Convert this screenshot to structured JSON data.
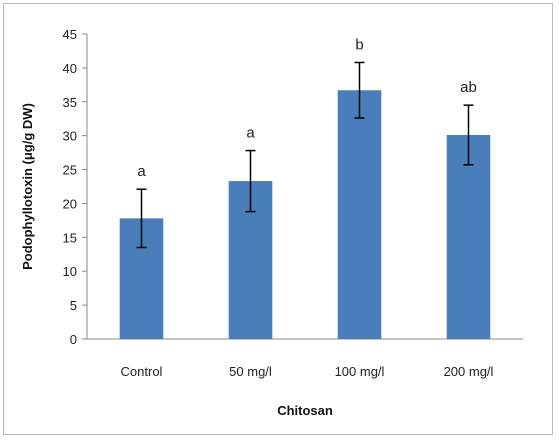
{
  "chart_data": {
    "type": "bar",
    "categories": [
      "Control",
      "50 mg/l",
      "100 mg/l",
      "200 mg/l"
    ],
    "values": [
      17.8,
      23.3,
      36.7,
      30.1
    ],
    "errors": [
      4.3,
      4.5,
      4.1,
      4.4
    ],
    "significance_letters": [
      "a",
      "a",
      "b",
      "ab"
    ],
    "xlabel": "Chitosan",
    "ylabel": "Podophyllotoxin (μg/g DW)",
    "ylim": [
      0,
      45
    ],
    "yticks": [
      0,
      5,
      10,
      15,
      20,
      25,
      30,
      35,
      40,
      45
    ],
    "grid": false,
    "bar_color": "#4a7ebb",
    "error_bar_color": "#000000"
  }
}
